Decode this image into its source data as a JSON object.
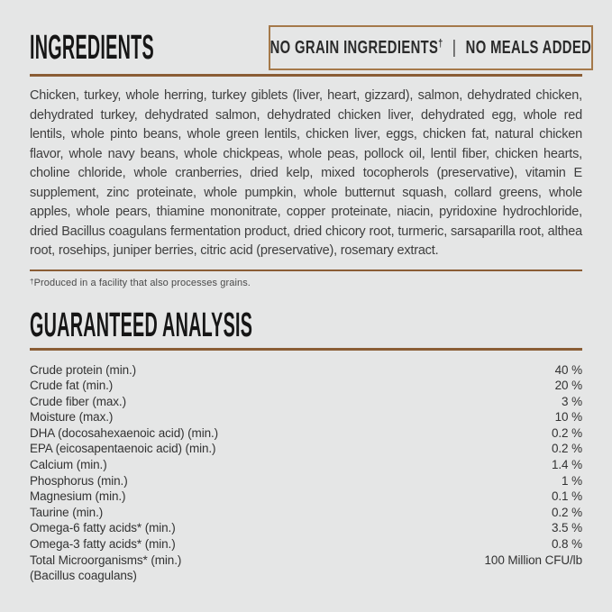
{
  "colors": {
    "background": "#e5e6e6",
    "rule_brown": "#8a5d35",
    "badge_border": "#a5794a",
    "heading_text": "#161616",
    "body_text": "#3e3e3e"
  },
  "ingredients": {
    "title": "INGREDIENTS",
    "badge": {
      "left": "NO GRAIN INGREDIENTS",
      "dagger": "†",
      "separator": "|",
      "right": "NO MEALS ADDED"
    },
    "text": "Chicken, turkey, whole herring, turkey giblets (liver, heart, gizzard), salmon, dehydrated chicken, dehydrated turkey, dehydrated salmon, dehydrated chicken liver, dehydrated egg, whole red lentils, whole pinto beans, whole green lentils, chicken liver, eggs, chicken fat, natural chicken flavor, whole navy beans, whole chickpeas, whole peas, pollock oil, lentil fiber, chicken hearts, choline chloride, whole cranberries, dried kelp, mixed tocopherols (preservative), vitamin E supplement, zinc proteinate, whole pumpkin, whole butternut squash, collard greens, whole apples, whole pears, thiamine mononitrate, copper proteinate, niacin, pyridoxine hydrochloride, dried Bacillus coagulans fermentation product, dried chicory root, turmeric, sarsaparilla root, althea root, rosehips, juniper berries, citric acid (preservative), rosemary extract.",
    "footnote_marker": "†",
    "footnote_text": "Produced in a facility that also processes grains."
  },
  "analysis": {
    "title": "GUARANTEED ANALYSIS",
    "rows": [
      {
        "label": "Crude protein (min.)",
        "value": "40 %"
      },
      {
        "label": "Crude fat (min.)",
        "value": "20 %"
      },
      {
        "label": "Crude fiber (max.)",
        "value": "3 %"
      },
      {
        "label": "Moisture (max.)",
        "value": "10 %"
      },
      {
        "label": "DHA (docosahexaenoic acid) (min.)",
        "value": "0.2 %"
      },
      {
        "label": "EPA (eicosapentaenoic acid) (min.)",
        "value": "0.2 %"
      },
      {
        "label": "Calcium (min.)",
        "value": "1.4 %"
      },
      {
        "label": "Phosphorus (min.)",
        "value": "1 %"
      },
      {
        "label": "Magnesium (min.)",
        "value": "0.1 %"
      },
      {
        "label": "Taurine (min.)",
        "value": "0.2 %"
      },
      {
        "label": "Omega-6 fatty acids* (min.)",
        "value": "3.5 %"
      },
      {
        "label": "Omega-3 fatty acids* (min.)",
        "value": "0.8 %"
      },
      {
        "label": "Total Microorganisms* (min.)",
        "value": "100 Million CFU/lb"
      },
      {
        "label": "(Bacillus coagulans)",
        "value": ""
      }
    ]
  }
}
